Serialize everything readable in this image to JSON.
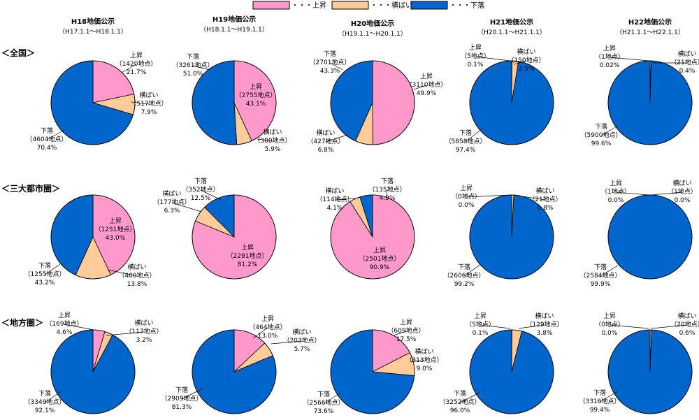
{
  "legend": [
    {
      "key": "up",
      "label": "・・・上昇",
      "color": "#ff99cc"
    },
    {
      "key": "flat",
      "label": "・・・横ばい",
      "color": "#ffcc99"
    },
    {
      "key": "down",
      "label": "・・・下落",
      "color": "#0066cc"
    }
  ],
  "columns": [
    {
      "title": "H18地価公示",
      "period": "（H17.1.1〜H18.1.1）"
    },
    {
      "title": "H19地価公示",
      "period": "（H18.1.1〜H19.1.1）"
    },
    {
      "title": "H20地価公示",
      "period": "（H19.1.1〜H20.1.1）"
    },
    {
      "title": "H21地価公示",
      "period": "（H20.1.1〜H21.1.1）"
    },
    {
      "title": "H22地価公示",
      "period": "（H21.1.1〜H22.1.1）"
    }
  ],
  "rows": [
    {
      "title": "＜全国＞"
    },
    {
      "title": "＜三大都市圏＞"
    },
    {
      "title": "＜地方圏＞"
    }
  ],
  "category_names": {
    "up": "上昇",
    "flat": "横ばい",
    "down": "下落"
  },
  "chart_data": [
    {
      "type": "pie",
      "row": "＜全国＞",
      "column": "H18地価公示",
      "slices": [
        {
          "category": "上昇",
          "count_label": "（1420地点）",
          "pct_label": "21.7%",
          "value": 21.7
        },
        {
          "category": "横ばい",
          "count_label": "（517地点）",
          "pct_label": "7.9%",
          "value": 7.9
        },
        {
          "category": "下落",
          "count_label": "（4604地点）",
          "pct_label": "70.4%",
          "value": 70.4
        }
      ]
    },
    {
      "type": "pie",
      "row": "＜全国＞",
      "column": "H19地価公示",
      "slices": [
        {
          "category": "上昇",
          "count_label": "（2755地点）",
          "pct_label": "43.1%",
          "value": 43.1
        },
        {
          "category": "横ばい",
          "count_label": "（380地点）",
          "pct_label": "5.9%",
          "value": 5.9
        },
        {
          "category": "下落",
          "count_label": "（3261地点）",
          "pct_label": "51.0%",
          "value": 51.0
        }
      ]
    },
    {
      "type": "pie",
      "row": "＜全国＞",
      "column": "H20地価公示",
      "slices": [
        {
          "category": "上昇",
          "count_label": "（3110地点）",
          "pct_label": "49.9%",
          "value": 49.9
        },
        {
          "category": "横ばい",
          "count_label": "（427地点）",
          "pct_label": "6.8%",
          "value": 6.8
        },
        {
          "category": "下落",
          "count_label": "（2701地点）",
          "pct_label": "43.3%",
          "value": 43.3
        }
      ]
    },
    {
      "type": "pie",
      "row": "＜全国＞",
      "column": "H21地価公示",
      "slices": [
        {
          "category": "上昇",
          "count_label": "（5地点）",
          "pct_label": "0.1%",
          "value": 0.1
        },
        {
          "category": "横ばい",
          "count_label": "（150地点）",
          "pct_label": "2.5%",
          "value": 2.5
        },
        {
          "category": "下落",
          "count_label": "（5858地点）",
          "pct_label": "97.4%",
          "value": 97.4
        }
      ]
    },
    {
      "type": "pie",
      "row": "＜全国＞",
      "column": "H22地価公示",
      "slices": [
        {
          "category": "上昇",
          "count_label": "（1地点）",
          "pct_label": "0.02%",
          "value": 0.02
        },
        {
          "category": "横ばい",
          "count_label": "（21地点）",
          "pct_label": "0.4%",
          "value": 0.4
        },
        {
          "category": "下落",
          "count_label": "（5900地点）",
          "pct_label": "99.6%",
          "value": 99.6
        }
      ]
    },
    {
      "type": "pie",
      "row": "＜三大都市圏＞",
      "column": "H18地価公示",
      "slices": [
        {
          "category": "上昇",
          "count_label": "（1251地点）",
          "pct_label": "43.0%",
          "value": 43.0
        },
        {
          "category": "横ばい",
          "count_label": "（400地点）",
          "pct_label": "13.8%",
          "value": 13.8
        },
        {
          "category": "下落",
          "count_label": "（1255地点）",
          "pct_label": "43.2%",
          "value": 43.2
        }
      ]
    },
    {
      "type": "pie",
      "row": "＜三大都市圏＞",
      "column": "H19地価公示",
      "slices": [
        {
          "category": "上昇",
          "count_label": "（2291地点）",
          "pct_label": "81.2%",
          "value": 81.2
        },
        {
          "category": "横ばい",
          "count_label": "（177地点）",
          "pct_label": "6.3%",
          "value": 6.3
        },
        {
          "category": "下落",
          "count_label": "（352地点）",
          "pct_label": "12.5%",
          "value": 12.5
        }
      ]
    },
    {
      "type": "pie",
      "row": "＜三大都市圏＞",
      "column": "H20地価公示",
      "slices": [
        {
          "category": "上昇",
          "count_label": "（2501地点）",
          "pct_label": "90.9%",
          "value": 90.9
        },
        {
          "category": "横ばい",
          "count_label": "（114地点）",
          "pct_label": "4.1%",
          "value": 4.1
        },
        {
          "category": "下落",
          "count_label": "（135地点）",
          "pct_label": "4.9%",
          "value": 4.9
        }
      ]
    },
    {
      "type": "pie",
      "row": "＜三大都市圏＞",
      "column": "H21地価公示",
      "slices": [
        {
          "category": "上昇",
          "count_label": "（0地点）",
          "pct_label": "0.0%",
          "value": 0.0
        },
        {
          "category": "横ばい",
          "count_label": "（21地点）",
          "pct_label": "0.8%",
          "value": 0.8
        },
        {
          "category": "下落",
          "count_label": "（2606地点）",
          "pct_label": "99.2%",
          "value": 99.2
        }
      ]
    },
    {
      "type": "pie",
      "row": "＜三大都市圏＞",
      "column": "H22地価公示",
      "slices": [
        {
          "category": "上昇",
          "count_label": "（1地点）",
          "pct_label": "0.0%",
          "value": 0.0
        },
        {
          "category": "横ばい",
          "count_label": "（1地点）",
          "pct_label": "0.0%",
          "value": 0.0
        },
        {
          "category": "下落",
          "count_label": "（2584地点）",
          "pct_label": "99.9%",
          "value": 99.9
        }
      ]
    },
    {
      "type": "pie",
      "row": "＜地方圏＞",
      "column": "H18地価公示",
      "slices": [
        {
          "category": "上昇",
          "count_label": "（169地点）",
          "pct_label": "4.6%",
          "value": 4.6
        },
        {
          "category": "横ばい",
          "count_label": "（117地点）",
          "pct_label": "3.2%",
          "value": 3.2
        },
        {
          "category": "下落",
          "count_label": "（3349地点）",
          "pct_label": "92.1%",
          "value": 92.1
        }
      ]
    },
    {
      "type": "pie",
      "row": "＜地方圏＞",
      "column": "H19地価公示",
      "slices": [
        {
          "category": "上昇",
          "count_label": "（464地点）",
          "pct_label": "13.0%",
          "value": 13.0
        },
        {
          "category": "横ばい",
          "count_label": "（203地点）",
          "pct_label": "5.7%",
          "value": 5.7
        },
        {
          "category": "下落",
          "count_label": "（2909地点）",
          "pct_label": "81.3%",
          "value": 81.3
        }
      ]
    },
    {
      "type": "pie",
      "row": "＜地方圏＞",
      "column": "H20地価公示",
      "slices": [
        {
          "category": "上昇",
          "count_label": "（609地点）",
          "pct_label": "17.5%",
          "value": 17.5
        },
        {
          "category": "横ばい",
          "count_label": "（313地点）",
          "pct_label": "9.0%",
          "value": 9.0
        },
        {
          "category": "下落",
          "count_label": "（2566地点）",
          "pct_label": "73.6%",
          "value": 73.6
        }
      ]
    },
    {
      "type": "pie",
      "row": "＜地方圏＞",
      "column": "H21地価公示",
      "slices": [
        {
          "category": "上昇",
          "count_label": "（5地点）",
          "pct_label": "0.1%",
          "value": 0.1
        },
        {
          "category": "横ばい",
          "count_label": "（129地点）",
          "pct_label": "3.8%",
          "value": 3.8
        },
        {
          "category": "下落",
          "count_label": "（3252地点）",
          "pct_label": "96.0%",
          "value": 96.0
        }
      ]
    },
    {
      "type": "pie",
      "row": "＜地方圏＞",
      "column": "H22地価公示",
      "slices": [
        {
          "category": "上昇",
          "count_label": "（0地点）",
          "pct_label": "0.0%",
          "value": 0.0
        },
        {
          "category": "横ばい",
          "count_label": "（20地点）",
          "pct_label": "0.6%",
          "value": 0.6
        },
        {
          "category": "下落",
          "count_label": "（3316地点）",
          "pct_label": "99.4%",
          "value": 99.4
        }
      ]
    }
  ]
}
